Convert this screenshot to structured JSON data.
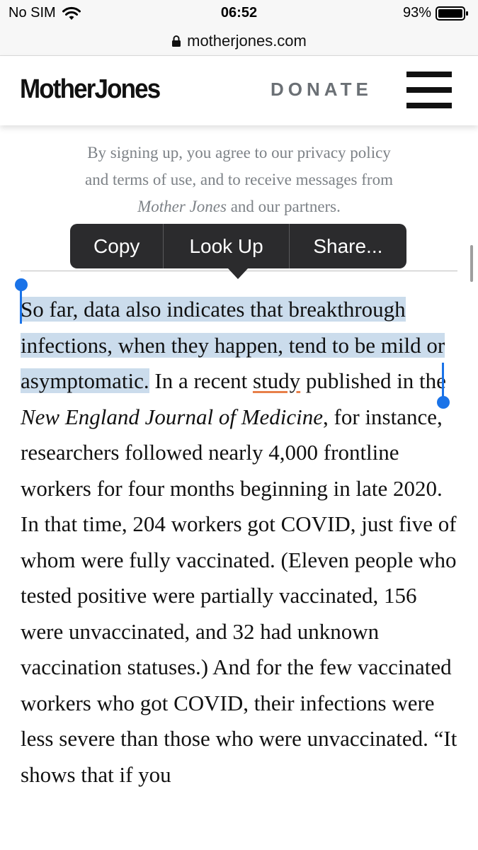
{
  "status_bar": {
    "carrier": "No SIM",
    "time": "06:52",
    "battery": "93%",
    "icons": [
      "wifi-icon",
      "battery-icon"
    ]
  },
  "browser": {
    "url": "motherjones.com",
    "icons": [
      "lock-icon"
    ]
  },
  "header": {
    "logo": "MotherJones",
    "donate_label": "DONATE",
    "icons": [
      "hamburger-menu-icon"
    ]
  },
  "signup_note": {
    "line1": "By signing up, you agree to our privacy policy",
    "line2": "and terms of use, and to receive messages from",
    "line3_italic": "Mother Jones",
    "line3_rest": " and our partners."
  },
  "context_menu": {
    "copy": "Copy",
    "look_up": "Look Up",
    "share": "Share..."
  },
  "article": {
    "selected_text": "So far, data also indicates that breakthrough infections, when they happen, tend to be mild or asymptomatic.",
    "p1_a": " In a recent ",
    "p1_link": "study",
    "p1_b": " published in the ",
    "p1_journal": "New England Journal of Medicine",
    "p1_c": ", for instance, researchers followed nearly 4,000 frontline workers for four months beginning in late 2020. In that time, 204 workers got COVID, just five of whom were fully vaccinated. (Eleven people who tested positive were partially vaccinated, 156 were unvaccinated, and 32 had unknown vaccination statuses.) And for the few vaccinated workers who got COVID, their infections were less severe than those who were unvaccinated. “It shows that if you"
  },
  "colors": {
    "selection": "#cbdcec",
    "handle": "#1a73e8",
    "link_underline": "#e8804a",
    "menu_bg": "#2b2b2d"
  }
}
